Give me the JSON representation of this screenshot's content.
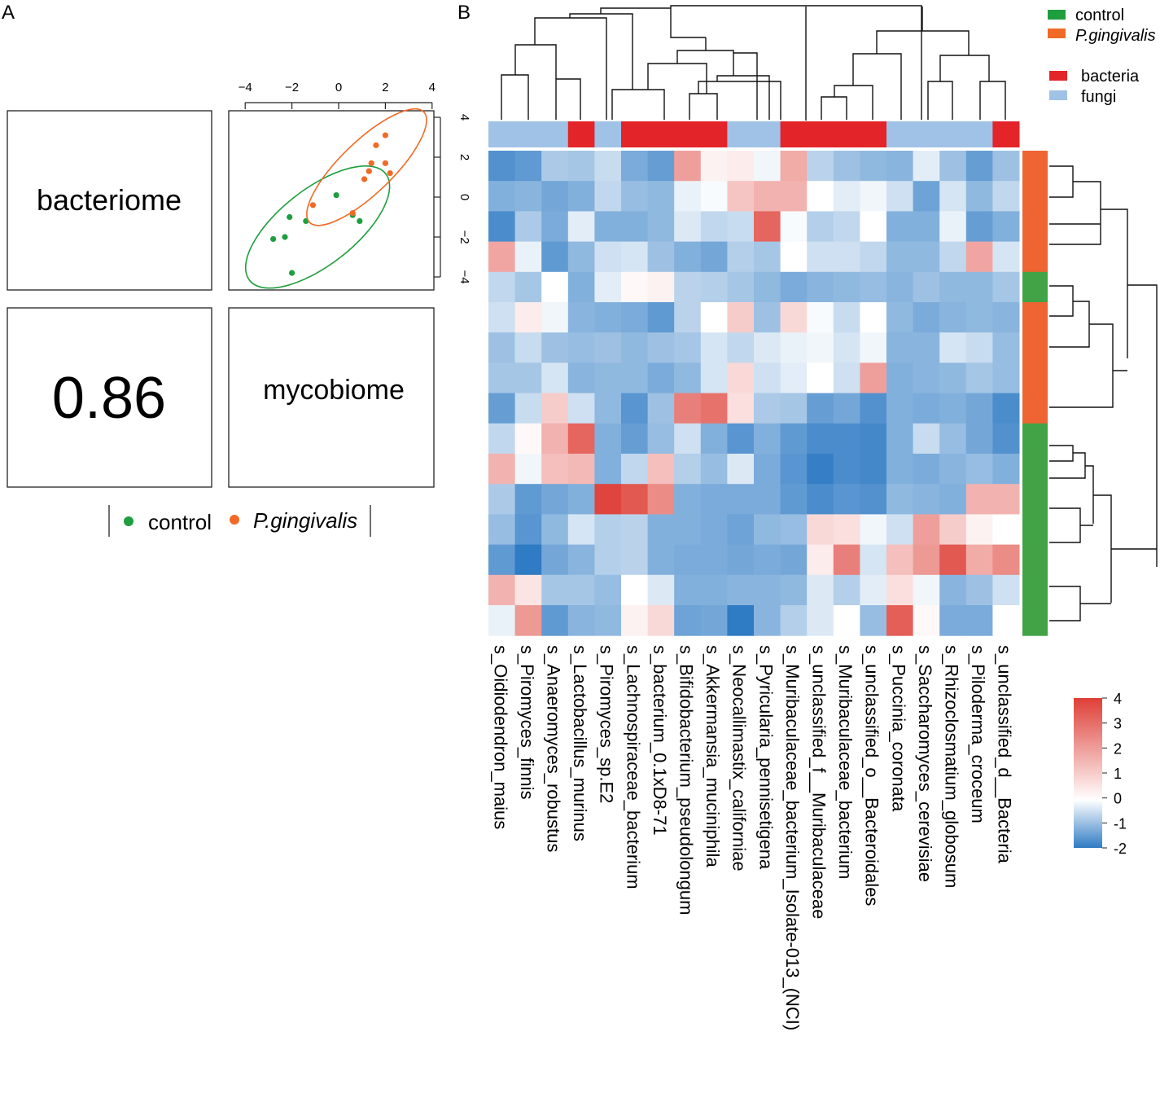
{
  "panels": {
    "a": "A",
    "b": "B"
  },
  "chart_data": [
    {
      "type": "scatter",
      "panel": "A",
      "diag_labels": {
        "top_left": "bacteriome",
        "bottom_right": "mycobiome"
      },
      "correlation": "0.86",
      "xticks": [
        -4,
        -2,
        0,
        2,
        4
      ],
      "yticks": [
        4,
        2,
        0,
        -2,
        -4
      ],
      "xlim": [
        -4.5,
        4
      ],
      "ylim": [
        -4.5,
        4.5
      ],
      "legend": {
        "position": "bottom",
        "items": [
          {
            "label": "control",
            "color": "#1e9e3e"
          },
          {
            "label": "P.gingivalis",
            "color": "#f06a26"
          }
        ]
      },
      "series": [
        {
          "name": "control",
          "color": "#1e9e3e",
          "points": [
            [
              -2.0,
              -3.8
            ],
            [
              -2.8,
              -2.1
            ],
            [
              -2.3,
              -2.0
            ],
            [
              -2.1,
              -1.0
            ],
            [
              -1.4,
              -1.2
            ],
            [
              -0.1,
              0.1
            ],
            [
              0.6,
              -0.9
            ],
            [
              0.9,
              -1.2
            ]
          ],
          "ellipse": {
            "cx": -0.9,
            "cy": -1.5,
            "rx": 3.7,
            "ry": 1.9,
            "angle": 38
          }
        },
        {
          "name": "P.gingivalis",
          "color": "#f06a26",
          "points": [
            [
              -1.1,
              -0.4
            ],
            [
              0.6,
              -0.8
            ],
            [
              1.1,
              0.9
            ],
            [
              1.4,
              1.7
            ],
            [
              1.3,
              1.3
            ],
            [
              1.6,
              2.6
            ],
            [
              2.0,
              1.7
            ],
            [
              2.2,
              1.2
            ],
            [
              2.0,
              3.1
            ]
          ],
          "ellipse": {
            "cx": 1.2,
            "cy": 1.5,
            "rx": 3.4,
            "ry": 1.3,
            "angle": 44
          }
        }
      ]
    },
    {
      "type": "heatmap",
      "panel": "B",
      "columns": [
        "s_Oidiodendron_maius",
        "s_Piromyces_finnis",
        "s_Anaeromyces_robustus",
        "s_Lactobacillus_murinus",
        "s_Piromyces_sp.E2",
        "s_Lachnospiraceae_bacterium",
        "s_bacterium_0.1xD8-71",
        "s_Bifidobacterium_pseudolongum",
        "s_Akkermansia_muciniphila",
        "s_Neocallimastix_californiae",
        "s_Pyricularia_pennisetigena",
        "s_Muribaculaceae_bacterium_Isolate-013_(NCI)",
        "s_unclassified_f__Muribaculaceae",
        "s_Muribaculaceae_bacterium",
        "s_unclassified_o__Bacteroidales",
        "s_Puccinia_coronata",
        "s_Saccharomyces_cerevisiae",
        "s_Rhizoclosmatium_globosum",
        "s_Piloderma_croceum",
        "s_unclassified_d__Bacteria"
      ],
      "column_types": [
        "fungi",
        "fungi",
        "fungi",
        "bacteria",
        "fungi",
        "bacteria",
        "bacteria",
        "bacteria",
        "bacteria",
        "fungi",
        "fungi",
        "bacteria",
        "bacteria",
        "bacteria",
        "bacteria",
        "fungi",
        "fungi",
        "fungi",
        "fungi",
        "bacteria"
      ],
      "row_groups": [
        "P.gingivalis",
        "P.gingivalis",
        "P.gingivalis",
        "P.gingivalis",
        "control",
        "P.gingivalis",
        "P.gingivalis",
        "P.gingivalis",
        "P.gingivalis",
        "control",
        "control",
        "control",
        "control",
        "control",
        "control",
        "control"
      ],
      "values": [
        [
          -1.5,
          -1.3,
          -0.2,
          -0.3,
          0.2,
          -0.9,
          -1.2,
          2.5,
          1.2,
          1.3,
          0.8,
          2.3,
          0,
          -0.4,
          -0.6,
          -0.7,
          0.6,
          -0.4,
          -1.2,
          -0.4
        ],
        [
          -0.8,
          -0.7,
          -1.0,
          -0.8,
          0.1,
          -0.5,
          -0.6,
          0.7,
          0.9,
          1.9,
          2.2,
          2.2,
          1,
          0.6,
          0.8,
          0.3,
          -1.1,
          0.4,
          -0.6,
          0.1
        ],
        [
          -1.6,
          -0.2,
          -0.9,
          0.6,
          -0.8,
          -0.8,
          -0.6,
          0.5,
          0.1,
          0.2,
          3.4,
          0.9,
          -0.1,
          0.1,
          1,
          -0.8,
          -0.8,
          0.7,
          -1.2,
          -0.8
        ],
        [
          2.4,
          0.7,
          -1.3,
          -0.6,
          0.3,
          0.4,
          -0.4,
          -0.8,
          -1.0,
          -0.1,
          -0.3,
          1,
          0.3,
          0.3,
          0.1,
          -0.6,
          -0.6,
          0.1,
          2.4,
          0.4
        ],
        [
          0.1,
          -0.3,
          1,
          -0.8,
          0.6,
          1.1,
          1.2,
          0,
          -0.1,
          -0.3,
          -0.6,
          -0.9,
          -0.7,
          -0.6,
          -0.5,
          -0.7,
          -0.4,
          -0.6,
          -0.6,
          -0.3
        ],
        [
          0.3,
          1.3,
          0.8,
          -0.7,
          -0.8,
          -0.9,
          -1.3,
          0,
          1,
          1.8,
          -0.4,
          1.6,
          0.9,
          0.2,
          1,
          -0.6,
          -0.9,
          -0.7,
          -0.6,
          -0.7
        ],
        [
          -0.4,
          0.2,
          -0.4,
          -0.5,
          -0.4,
          -0.6,
          -0.4,
          -0.3,
          0.4,
          0.1,
          0.5,
          0.7,
          0.8,
          0.4,
          0.8,
          -0.7,
          -0.7,
          0.4,
          0.2,
          -0.5
        ],
        [
          -0.3,
          -0.3,
          0.4,
          -0.7,
          -0.6,
          -0.6,
          -0.9,
          -0.6,
          0.4,
          1.6,
          0.3,
          0.6,
          1,
          0.3,
          2.5,
          -0.8,
          -0.7,
          -0.6,
          -0.3,
          -0.5
        ],
        [
          -1.2,
          0.2,
          1.8,
          0.3,
          -0.6,
          -1.4,
          -0.4,
          3,
          3.2,
          1.5,
          -0.2,
          -0.3,
          -1.2,
          -1.0,
          -1.5,
          -0.8,
          -0.9,
          -0.8,
          -1.0,
          -1.6
        ],
        [
          0.1,
          1.1,
          2.2,
          3.4,
          -0.8,
          -1.2,
          -0.5,
          0.3,
          -0.8,
          -1.4,
          -0.8,
          -1.3,
          -1.6,
          -1.6,
          -1.7,
          -0.8,
          0.2,
          -0.5,
          -1.0,
          -1.5
        ],
        [
          2.2,
          0.8,
          2,
          2.1,
          -0.8,
          0.1,
          2,
          -0.1,
          -0.5,
          0.5,
          -0.9,
          -1.4,
          -1.9,
          -1.6,
          -1.7,
          -0.8,
          -0.9,
          -0.7,
          -0.5,
          -0.8
        ],
        [
          -0.2,
          -1.3,
          -1.0,
          -0.8,
          3.9,
          3.6,
          2.8,
          -0.8,
          -0.9,
          -0.9,
          -0.9,
          -1.3,
          -1.6,
          -1.4,
          -1.5,
          -0.6,
          -0.7,
          -0.8,
          2.2,
          2.2
        ],
        [
          -0.5,
          -1.4,
          -0.6,
          0.4,
          -0.1,
          0,
          -0.8,
          -0.8,
          -0.9,
          -1.1,
          -0.6,
          -0.5,
          1.6,
          1.5,
          0.8,
          0.3,
          2.5,
          1.8,
          1.2,
          1
        ],
        [
          -1.3,
          -2.0,
          -1.0,
          -0.7,
          -0.1,
          0,
          -0.8,
          -0.9,
          -0.9,
          -1.0,
          -0.9,
          -1.0,
          1.3,
          3,
          0.4,
          2,
          2.6,
          3.6,
          2.3,
          2.8
        ],
        [
          2.2,
          1.4,
          -0.3,
          -0.3,
          -0.5,
          1,
          0.5,
          -0.8,
          -0.8,
          -0.7,
          -0.7,
          -0.6,
          0.5,
          -0.1,
          0.6,
          1.5,
          0.8,
          -0.7,
          -0.4,
          0.3
        ],
        [
          0.7,
          2.6,
          -1.3,
          -0.7,
          -0.6,
          1.2,
          1.6,
          -1.1,
          -1.0,
          -2.0,
          -0.7,
          -0.1,
          0.5,
          1,
          -0.5,
          3.5,
          1.1,
          -0.9,
          -0.9,
          1
        ]
      ],
      "colorbar": {
        "ticks": [
          4,
          3,
          2,
          1,
          0,
          -1,
          -2
        ],
        "range": [
          -2,
          4
        ]
      },
      "legend": {
        "groups": [
          {
            "label": "control",
            "color": "#1e9e3e"
          },
          {
            "label": "P.gingivalis",
            "color": "#f06a26"
          }
        ],
        "types": [
          {
            "label": "bacteria",
            "color": "#e32428"
          },
          {
            "label": "fungi",
            "color": "#9fc2e6"
          }
        ]
      }
    }
  ]
}
